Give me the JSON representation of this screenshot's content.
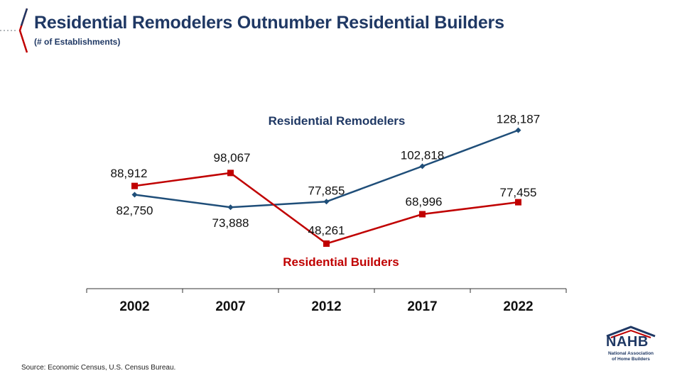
{
  "header": {
    "title": "Residential Remodelers Outnumber Residential Builders",
    "subtitle": "(# of Establishments)"
  },
  "footer": {
    "source": "Source:  Economic Census, U.S. Census Bureau."
  },
  "logo": {
    "word": "NAHB",
    "sub_line1": "National Association",
    "sub_line2": "of Home Builders"
  },
  "colors": {
    "remodelers": "#1f4e79",
    "builders": "#c00000",
    "title": "#1f3864"
  },
  "chart_data": {
    "type": "line",
    "title": "Residential Remodelers Outnumber Residential Builders",
    "subtitle": "(# of Establishments)",
    "categories": [
      "2002",
      "2007",
      "2012",
      "2017",
      "2022"
    ],
    "series": [
      {
        "name": "Residential Remodelers",
        "color": "#1f4e79",
        "marker": "diamond",
        "values": [
          82750,
          73888,
          77855,
          102818,
          128187
        ],
        "labels": [
          "82,750",
          "73,888",
          "77,855",
          "102,818",
          "128,187"
        ]
      },
      {
        "name": "Residential Builders",
        "color": "#c00000",
        "marker": "square",
        "values": [
          88912,
          98067,
          48261,
          68996,
          77455
        ],
        "labels": [
          "88,912",
          "98,067",
          "48,261",
          "68,996",
          "77,455"
        ]
      }
    ],
    "ylim": [
      40000,
      135000
    ],
    "grid": false,
    "legend": "inline series labels"
  }
}
